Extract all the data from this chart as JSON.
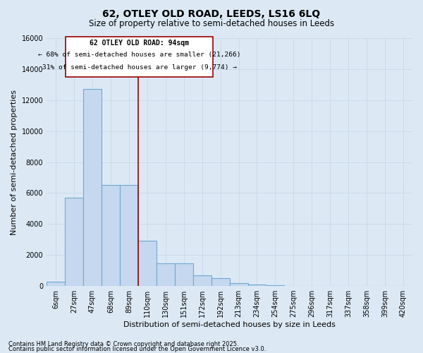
{
  "title_line1": "62, OTLEY OLD ROAD, LEEDS, LS16 6LQ",
  "title_line2": "Size of property relative to semi-detached houses in Leeds",
  "xlabel": "Distribution of semi-detached houses by size in Leeds",
  "ylabel": "Number of semi-detached properties",
  "categories": [
    "6sqm",
    "27sqm",
    "47sqm",
    "68sqm",
    "89sqm",
    "110sqm",
    "130sqm",
    "151sqm",
    "172sqm",
    "192sqm",
    "213sqm",
    "234sqm",
    "254sqm",
    "275sqm",
    "296sqm",
    "317sqm",
    "337sqm",
    "358sqm",
    "399sqm",
    "420sqm"
  ],
  "values": [
    280,
    5700,
    12700,
    6500,
    6500,
    2900,
    1450,
    1450,
    700,
    500,
    200,
    100,
    50,
    20,
    10,
    5,
    2,
    2,
    2,
    2
  ],
  "bar_color": "#c5d8ef",
  "bar_edge_color": "#6fa8d4",
  "vline_color": "#990000",
  "vline_position": 4.5,
  "annotation_text_line1": "62 OTLEY OLD ROAD: 94sqm",
  "annotation_text_line2": "← 68% of semi-detached houses are smaller (21,266)",
  "annotation_text_line3": "31% of semi-detached houses are larger (9,774) →",
  "annotation_box_color": "#990000",
  "ylim": [
    0,
    16000
  ],
  "yticks": [
    0,
    2000,
    4000,
    6000,
    8000,
    10000,
    12000,
    14000,
    16000
  ],
  "footnote_line1": "Contains HM Land Registry data © Crown copyright and database right 2025.",
  "footnote_line2": "Contains public sector information licensed under the Open Government Licence v3.0.",
  "background_color": "#dce9f5",
  "plot_bg_color": "#dce9f5",
  "grid_color": "#c8d8e8",
  "title_fontsize": 10,
  "subtitle_fontsize": 8.5,
  "axis_label_fontsize": 8,
  "tick_fontsize": 7,
  "footnote_fontsize": 6
}
